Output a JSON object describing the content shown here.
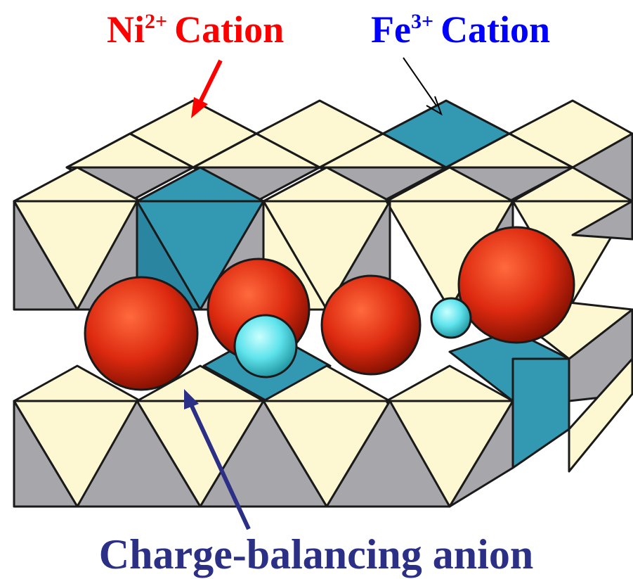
{
  "labels": {
    "ni_cation": {
      "ion": "Ni",
      "charge": "2+",
      "word": "Cation"
    },
    "fe_cation": {
      "ion": "Fe",
      "charge": "3+",
      "word": "Cation"
    },
    "anion": "Charge-balancing anion"
  },
  "colors": {
    "ni_octahedron": "#fdf8d2",
    "fe_octahedron": "#3399b3",
    "side_face": "#a7a7ab",
    "anion_sphere": "#e0301a",
    "water_sphere": "#5fe3ec",
    "ni_label": "#ff0000",
    "fe_label": "#0000ff",
    "anion_label": "#2b2f86"
  }
}
